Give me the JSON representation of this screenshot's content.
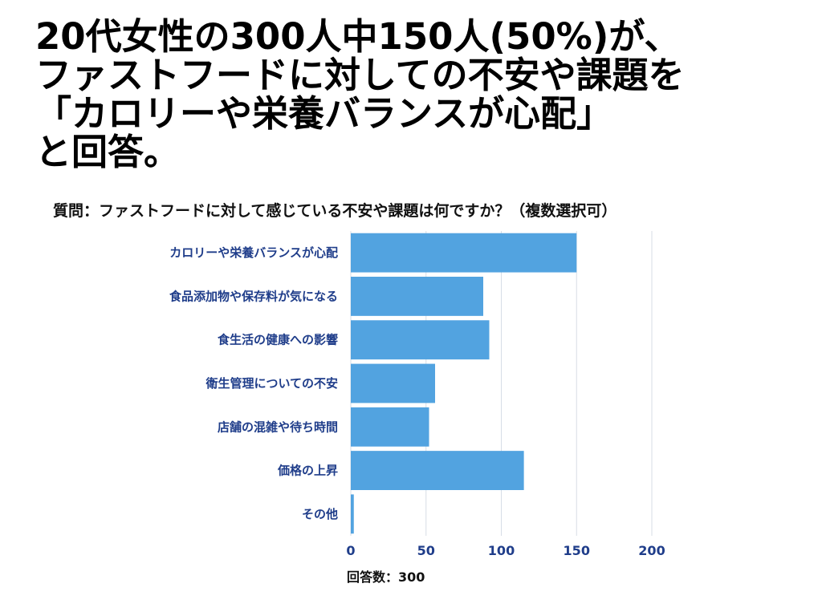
{
  "headline": {
    "lines": [
      "20代女性の300人中150人(50%)が、",
      "ファストフードに対しての不安や課題を",
      "「カロリーや栄養バランスが心配」",
      "と回答。"
    ]
  },
  "chart_data": {
    "type": "bar",
    "orientation": "horizontal",
    "title": "質問：ファストフードに対して感じている不安や課題は何ですか？（複数選択可）",
    "categories": [
      "カロリーや栄養バランスが心配",
      "食品添加物や保存料が気になる",
      "食生活の健康への影響",
      "衛生管理についての不安",
      "店舗の混雑や待ち時間",
      "価格の上昇",
      "その他"
    ],
    "values": [
      150,
      88,
      92,
      56,
      52,
      115,
      2
    ],
    "xlim": [
      0,
      200
    ],
    "xticks": [
      0,
      50,
      100,
      150,
      200
    ],
    "grid": true,
    "xlabel": "回答数：300",
    "ylabel": "",
    "colors": {
      "bar": "#52a3e0",
      "grid": "#d7dde6",
      "label": "#1f3d8a"
    }
  }
}
